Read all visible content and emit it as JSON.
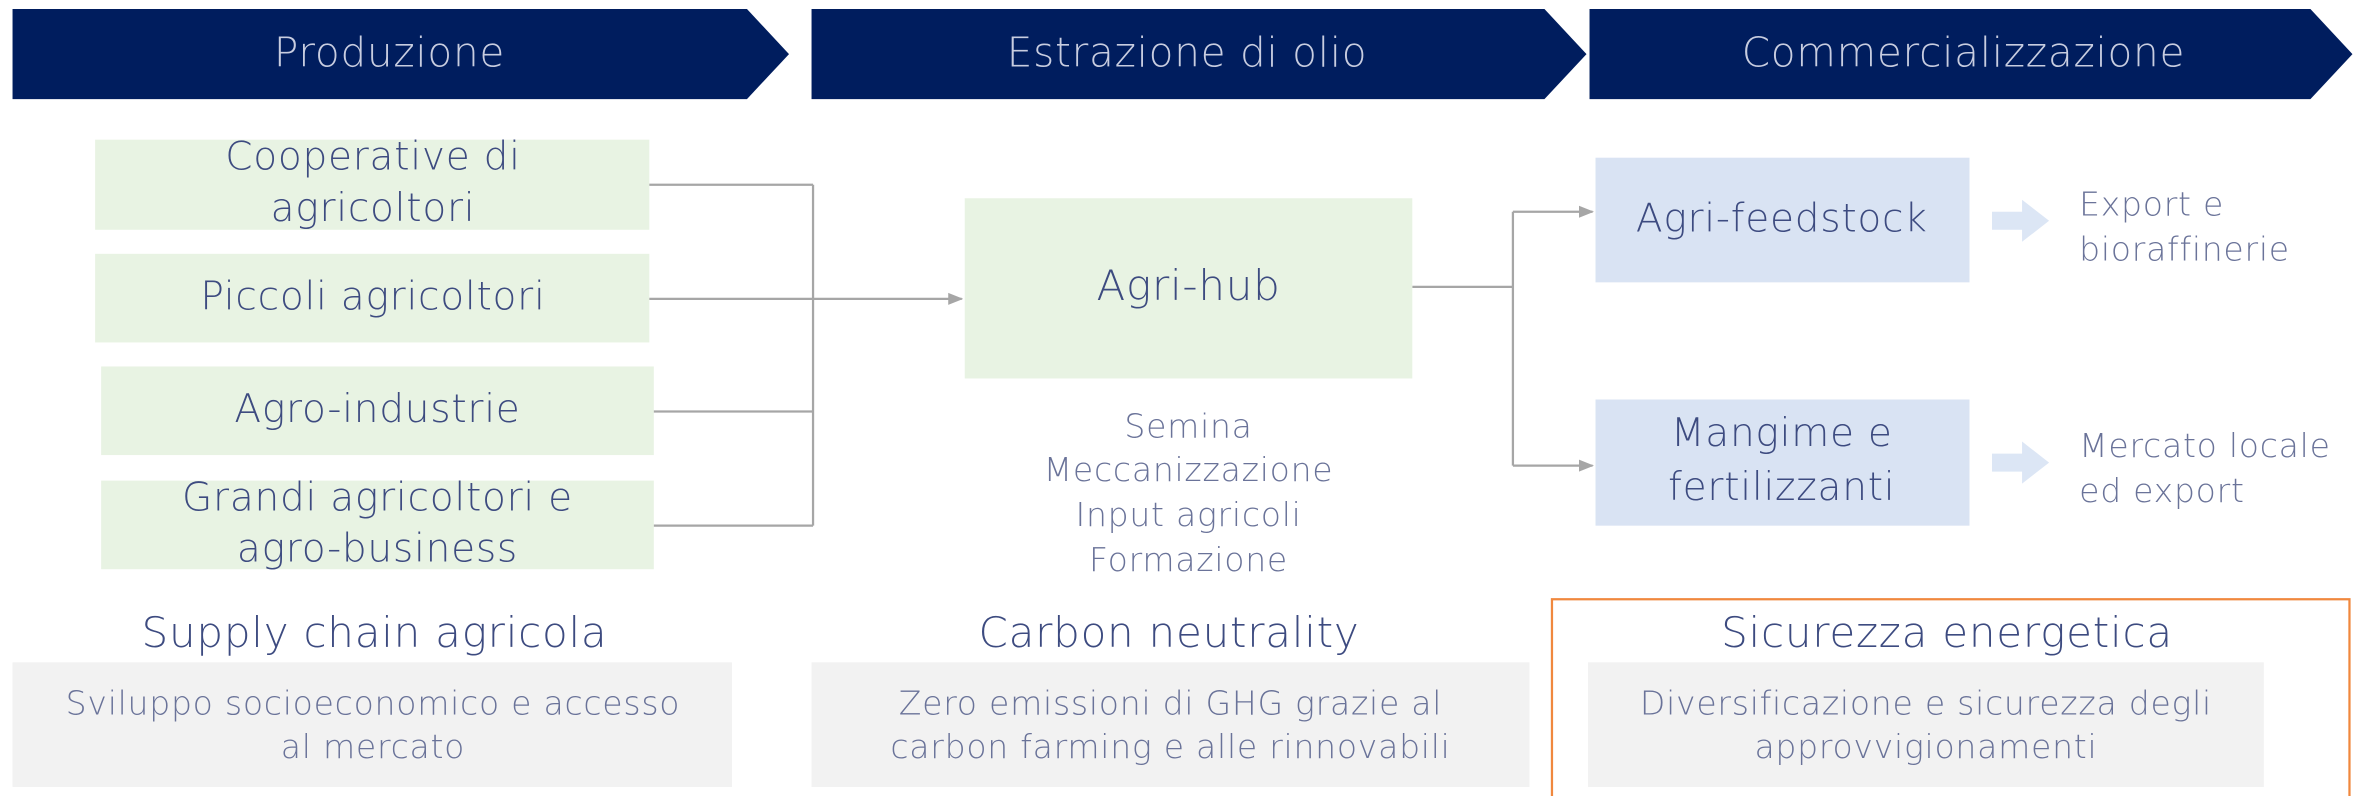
{
  "stages": [
    "Produzione",
    "Estrazione di olio",
    "Commercializzazione"
  ],
  "sources": [
    {
      "lines": [
        "Cooperative di",
        "agricoltori"
      ]
    },
    {
      "lines": [
        "Piccoli agricoltori"
      ]
    },
    {
      "lines": [
        "Agro-industrie"
      ]
    },
    {
      "lines": [
        "Grandi agricoltori e",
        "agro-business"
      ]
    }
  ],
  "hub": "Agri-hub",
  "hub_activities": [
    "Semina",
    "Meccanizzazione",
    "Input agricoli",
    "Formazione"
  ],
  "outputs": [
    {
      "lines": [
        "Agri-feedstock"
      ]
    },
    {
      "lines": [
        "Mangime e",
        "fertilizzanti"
      ]
    }
  ],
  "destinations": [
    {
      "lines": [
        "Export e",
        "bioraffinerie"
      ]
    },
    {
      "lines": [
        "Mercato locale",
        "ed export"
      ]
    }
  ],
  "pillars": [
    {
      "title": "Supply chain agricola",
      "description": [
        "Sviluppo socioeconomico e accesso",
        "al mercato"
      ]
    },
    {
      "title": "Carbon neutrality",
      "description": [
        "Zero emissioni di GHG grazie al",
        "carbon farming e alle rinnovabili"
      ]
    },
    {
      "title": "Sicurezza energetica",
      "description": [
        "Diversificazione e sicurezza degli",
        "approvvigionamenti"
      ]
    }
  ]
}
